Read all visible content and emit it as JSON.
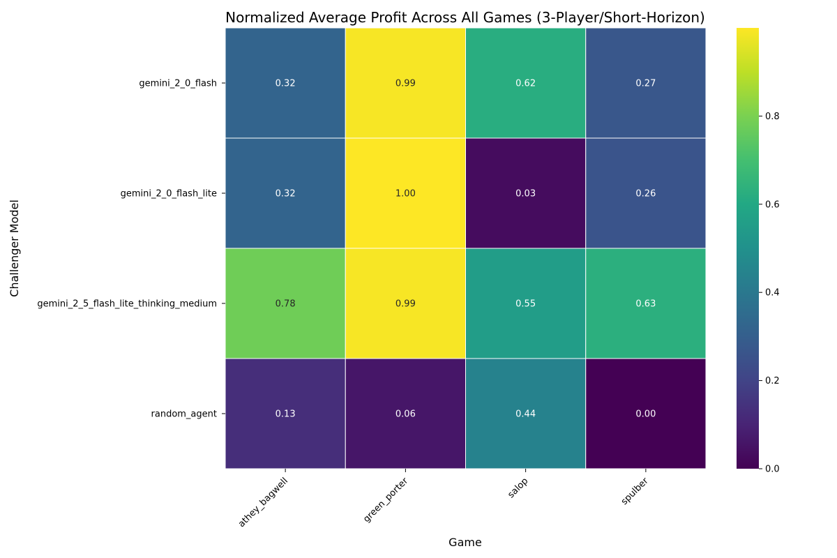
{
  "chart_data": {
    "type": "heatmap",
    "title": "Normalized Average Profit Across All Games (3-Player/Short-Horizon)",
    "xlabel": "Game",
    "ylabel": "Challenger Model",
    "x_categories": [
      "athey_bagwell",
      "green_porter",
      "salop",
      "spulber"
    ],
    "y_categories": [
      "gemini_2_0_flash",
      "gemini_2_0_flash_lite",
      "gemini_2_5_flash_lite_thinking_medium",
      "random_agent"
    ],
    "values": [
      [
        0.32,
        0.99,
        0.62,
        0.27
      ],
      [
        0.32,
        1.0,
        0.03,
        0.26
      ],
      [
        0.78,
        0.99,
        0.55,
        0.63
      ],
      [
        0.13,
        0.06,
        0.44,
        0.0
      ]
    ],
    "value_labels": [
      [
        "0.32",
        "0.99",
        "0.62",
        "0.27"
      ],
      [
        "0.32",
        "1.00",
        "0.03",
        "0.26"
      ],
      [
        "0.78",
        "0.99",
        "0.55",
        "0.63"
      ],
      [
        "0.13",
        "0.06",
        "0.44",
        "0.00"
      ]
    ],
    "colormap": "viridis",
    "colorbar": {
      "range": [
        0.0,
        1.0
      ],
      "ticks": [
        0.0,
        0.2,
        0.4,
        0.6,
        0.8
      ],
      "tick_labels": [
        "0.0",
        "0.2",
        "0.4",
        "0.6",
        "0.8"
      ]
    }
  }
}
